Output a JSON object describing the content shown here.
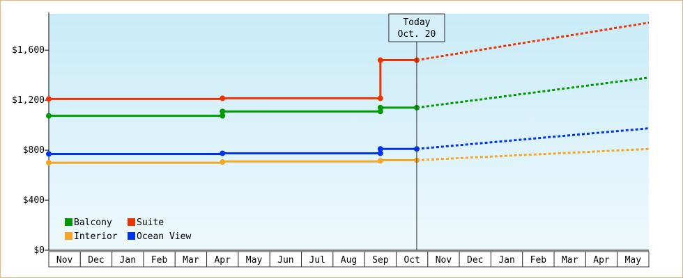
{
  "chart_data": {
    "type": "line",
    "x_categories": [
      "Nov",
      "Dec",
      "Jan",
      "Feb",
      "Mar",
      "Apr",
      "May",
      "Jun",
      "Jul",
      "Aug",
      "Sep",
      "Oct",
      "Nov",
      "Dec",
      "Jan",
      "Feb",
      "Mar",
      "Apr",
      "May"
    ],
    "y_ticks": [
      "$0",
      "$400",
      "$800",
      "$1,200",
      "$1,600"
    ],
    "y_tick_values": [
      0,
      400,
      800,
      1200,
      1600
    ],
    "ylim": [
      0,
      1890
    ],
    "today_marker": {
      "line1": "Today",
      "line2": "Oct. 20",
      "x_index": 11.65
    },
    "grid": false,
    "legend_position": "bottom-left",
    "series": [
      {
        "name": "Balcony",
        "color": "#009900",
        "historical": [
          [
            0,
            1075
          ],
          [
            5.5,
            1075
          ],
          [
            5.5,
            1110
          ],
          [
            10.5,
            1110
          ],
          [
            10.5,
            1140
          ],
          [
            11.65,
            1140
          ]
        ],
        "historical_markers": [
          [
            0,
            1075
          ],
          [
            5.5,
            1075
          ],
          [
            5.5,
            1110
          ],
          [
            10.5,
            1110
          ],
          [
            10.5,
            1140
          ],
          [
            11.65,
            1140
          ]
        ],
        "forecast": [
          [
            11.65,
            1140
          ],
          [
            19,
            1380
          ]
        ]
      },
      {
        "name": "Suite",
        "color": "#ee3300",
        "historical": [
          [
            0,
            1210
          ],
          [
            5.5,
            1210
          ],
          [
            5.5,
            1215
          ],
          [
            10.5,
            1215
          ],
          [
            10.5,
            1520
          ],
          [
            11.65,
            1520
          ]
        ],
        "historical_markers": [
          [
            0,
            1210
          ],
          [
            5.5,
            1215
          ],
          [
            10.5,
            1215
          ],
          [
            10.5,
            1520
          ],
          [
            11.65,
            1520
          ]
        ],
        "forecast": [
          [
            11.65,
            1520
          ],
          [
            19,
            1820
          ]
        ]
      },
      {
        "name": "Interior",
        "color": "#f5a623",
        "historical": [
          [
            0,
            700
          ],
          [
            5.5,
            700
          ],
          [
            5.5,
            710
          ],
          [
            10.5,
            710
          ],
          [
            10.5,
            720
          ],
          [
            11.65,
            720
          ]
        ],
        "historical_markers": [
          [
            0,
            700
          ],
          [
            5.5,
            705
          ],
          [
            10.5,
            715
          ],
          [
            11.65,
            720
          ]
        ],
        "forecast": [
          [
            11.65,
            720
          ],
          [
            19,
            810
          ]
        ]
      },
      {
        "name": "Ocean View",
        "color": "#0033ee",
        "historical": [
          [
            0,
            770
          ],
          [
            5.5,
            770
          ],
          [
            5.5,
            775
          ],
          [
            10.5,
            775
          ],
          [
            10.5,
            810
          ],
          [
            11.65,
            810
          ]
        ],
        "historical_markers": [
          [
            0,
            770
          ],
          [
            5.5,
            775
          ],
          [
            10.5,
            775
          ],
          [
            10.5,
            810
          ],
          [
            11.65,
            810
          ]
        ],
        "forecast": [
          [
            11.65,
            810
          ],
          [
            19,
            975
          ]
        ]
      }
    ],
    "legend_order": [
      "Balcony",
      "Suite",
      "Interior",
      "Ocean View"
    ]
  }
}
